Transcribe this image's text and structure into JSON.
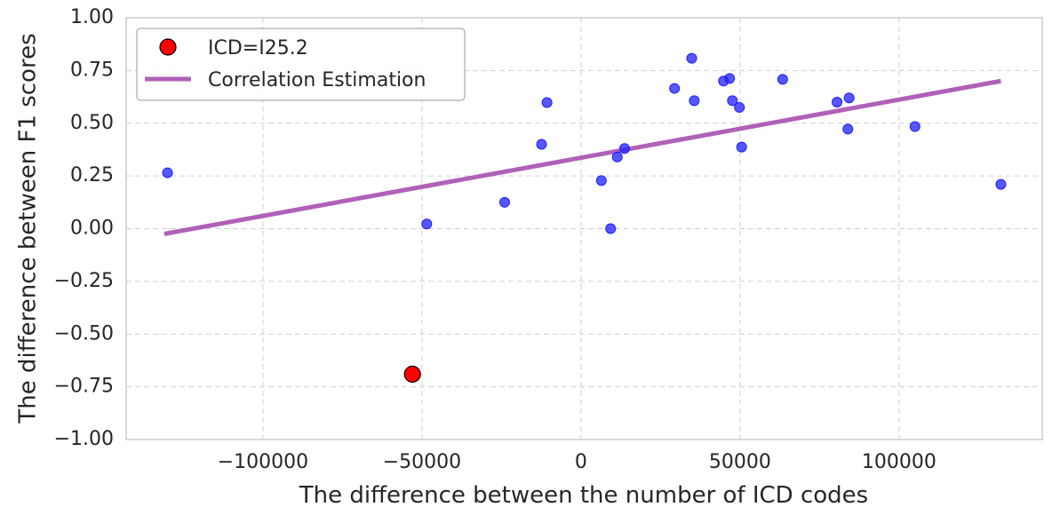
{
  "chart_data": {
    "type": "scatter",
    "xlabel": "The difference between the number of ICD codes",
    "ylabel": "The difference between F1 scores",
    "xlim": [
      -143000,
      145000
    ],
    "ylim": [
      -1.0,
      1.0
    ],
    "x_ticks": [
      -100000,
      -50000,
      0,
      50000,
      100000
    ],
    "x_tick_labels": [
      "−100000",
      "−50000",
      "0",
      "50000",
      "100000"
    ],
    "y_ticks": [
      1.0,
      0.75,
      0.5,
      0.25,
      0.0,
      -0.25,
      -0.5,
      -0.75,
      -1.0
    ],
    "y_tick_labels": [
      "1.00",
      "0.75",
      "0.50",
      "0.25",
      "0.00",
      "−0.25",
      "−0.50",
      "−0.75",
      "−1.00"
    ],
    "grid": true,
    "series": [
      {
        "name": "points",
        "color": "#1f1fff",
        "points": [
          [
            -130000,
            0.265
          ],
          [
            -48500,
            0.022
          ],
          [
            -24000,
            0.125
          ],
          [
            -12400,
            0.4
          ],
          [
            -10700,
            0.598
          ],
          [
            6400,
            0.228
          ],
          [
            9300,
            0.0
          ],
          [
            11400,
            0.34
          ],
          [
            13700,
            0.38
          ],
          [
            29400,
            0.665
          ],
          [
            34800,
            0.808
          ],
          [
            35600,
            0.607
          ],
          [
            44800,
            0.7
          ],
          [
            46700,
            0.712
          ],
          [
            47600,
            0.607
          ],
          [
            49800,
            0.575
          ],
          [
            50500,
            0.387
          ],
          [
            63400,
            0.708
          ],
          [
            80500,
            0.6
          ],
          [
            83900,
            0.472
          ],
          [
            84300,
            0.62
          ],
          [
            105000,
            0.484
          ],
          [
            132000,
            0.21
          ]
        ]
      },
      {
        "name": "ICD=I25.2",
        "color": "#ff0000",
        "points": [
          [
            -53000,
            -0.69
          ]
        ]
      }
    ],
    "line": {
      "name": "Correlation Estimation",
      "color": "#b060b8",
      "x": [
        -131000,
        132000
      ],
      "y": [
        -0.025,
        0.7
      ]
    },
    "legend": {
      "position": "top-left",
      "entries": [
        "ICD=I25.2",
        "Correlation Estimation"
      ]
    }
  }
}
